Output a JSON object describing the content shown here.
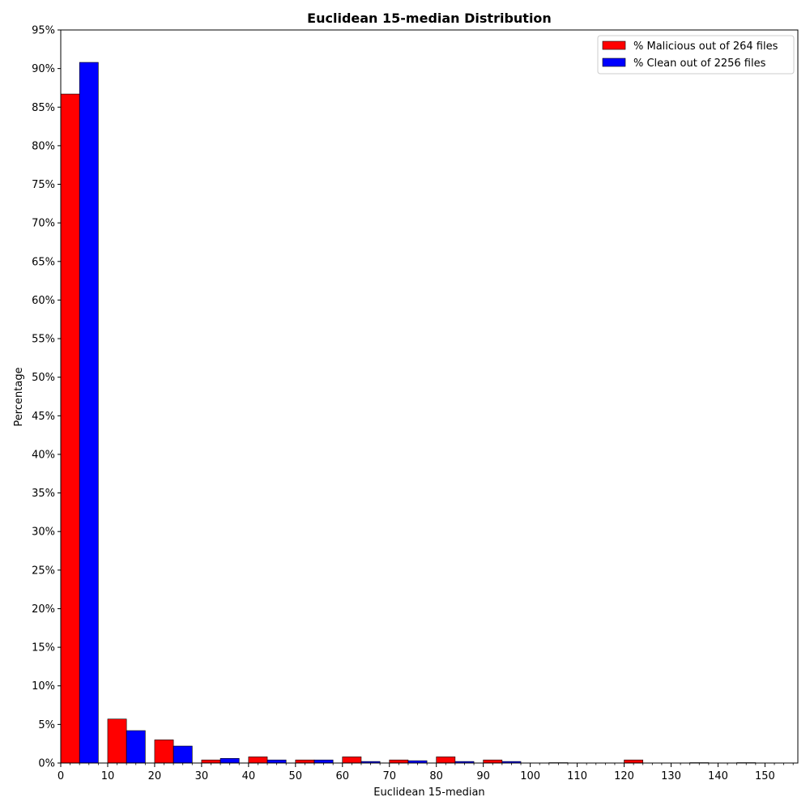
{
  "chart_data": {
    "type": "bar",
    "title": "Euclidean 15-median Distribution",
    "xlabel": "Euclidean 15-median",
    "ylabel": "Percentage",
    "xlim": [
      0,
      157
    ],
    "ylim": [
      0,
      95
    ],
    "bin_width": 10,
    "bin_starts": [
      0,
      10,
      20,
      30,
      40,
      50,
      60,
      70,
      80,
      90,
      100,
      110,
      120,
      130,
      140
    ],
    "x_ticks": [
      0,
      10,
      20,
      30,
      40,
      50,
      60,
      70,
      80,
      90,
      100,
      110,
      120,
      130,
      140,
      150
    ],
    "y_ticks": [
      0,
      5,
      10,
      15,
      20,
      25,
      30,
      35,
      40,
      45,
      50,
      55,
      60,
      65,
      70,
      75,
      80,
      85,
      90,
      95
    ],
    "y_tick_suffix": "%",
    "legend_position": "top-right",
    "series": [
      {
        "name": "% Malicious out of 264 files",
        "color": "#ff0000",
        "values": [
          86.7,
          5.7,
          3.0,
          0.4,
          0.8,
          0.4,
          0.8,
          0.4,
          0.8,
          0.4,
          0.0,
          0.0,
          0.4,
          0.0,
          0.0
        ]
      },
      {
        "name": "% Clean out of 2256 files",
        "color": "#0000ff",
        "values": [
          90.8,
          4.2,
          2.2,
          0.6,
          0.4,
          0.4,
          0.2,
          0.3,
          0.2,
          0.2,
          0.05,
          0.0,
          0.0,
          0.05,
          0.05
        ]
      }
    ]
  }
}
